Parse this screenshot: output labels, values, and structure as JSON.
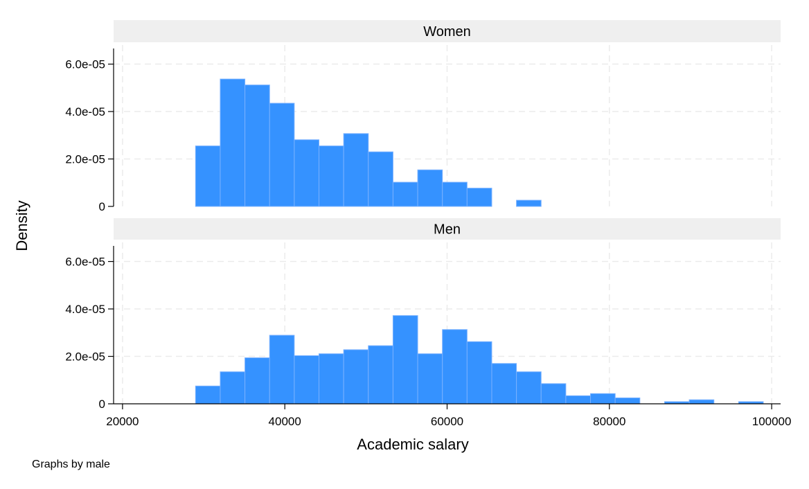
{
  "chart_data": {
    "type": "histogram",
    "xlabel": "Academic salary",
    "ylabel": "Density",
    "note": "Graphs by male",
    "xlim": [
      18900,
      101100
    ],
    "ylim": [
      0,
      6.6e-05
    ],
    "x_ticks": [
      20000,
      40000,
      60000,
      80000,
      100000
    ],
    "x_tick_labels": [
      "20000",
      "40000",
      "60000",
      "80000",
      "100000"
    ],
    "y_ticks": [
      0,
      2e-05,
      4e-05,
      6e-05
    ],
    "y_tick_labels": [
      "0",
      "2.0e-05",
      "4.0e-05",
      "6.0e-05"
    ],
    "grid": true,
    "bar_color": "#3592ff",
    "panel_label_bg": "#efefef",
    "bin_start": 29000,
    "bin_width": 3042,
    "panels": [
      {
        "name": "Women",
        "densities": [
          2.55e-05,
          5.37e-05,
          5.12e-05,
          4.35e-05,
          2.81e-05,
          2.55e-05,
          3.07e-05,
          2.3e-05,
          1.02e-05,
          1.54e-05,
          1.02e-05,
          7.7e-06,
          0,
          2.6e-06
        ]
      },
      {
        "name": "Men",
        "densities": [
          7.5e-06,
          1.35e-05,
          1.94e-05,
          2.89e-05,
          2.03e-05,
          2.11e-05,
          2.28e-05,
          2.45e-05,
          3.72e-05,
          2.11e-05,
          3.13e-05,
          2.62e-05,
          1.7e-05,
          1.35e-05,
          8.5e-06,
          3.4e-06,
          4.3e-06,
          2.5e-06,
          0,
          9e-07,
          1.7e-06,
          0,
          9e-07
        ]
      }
    ]
  }
}
